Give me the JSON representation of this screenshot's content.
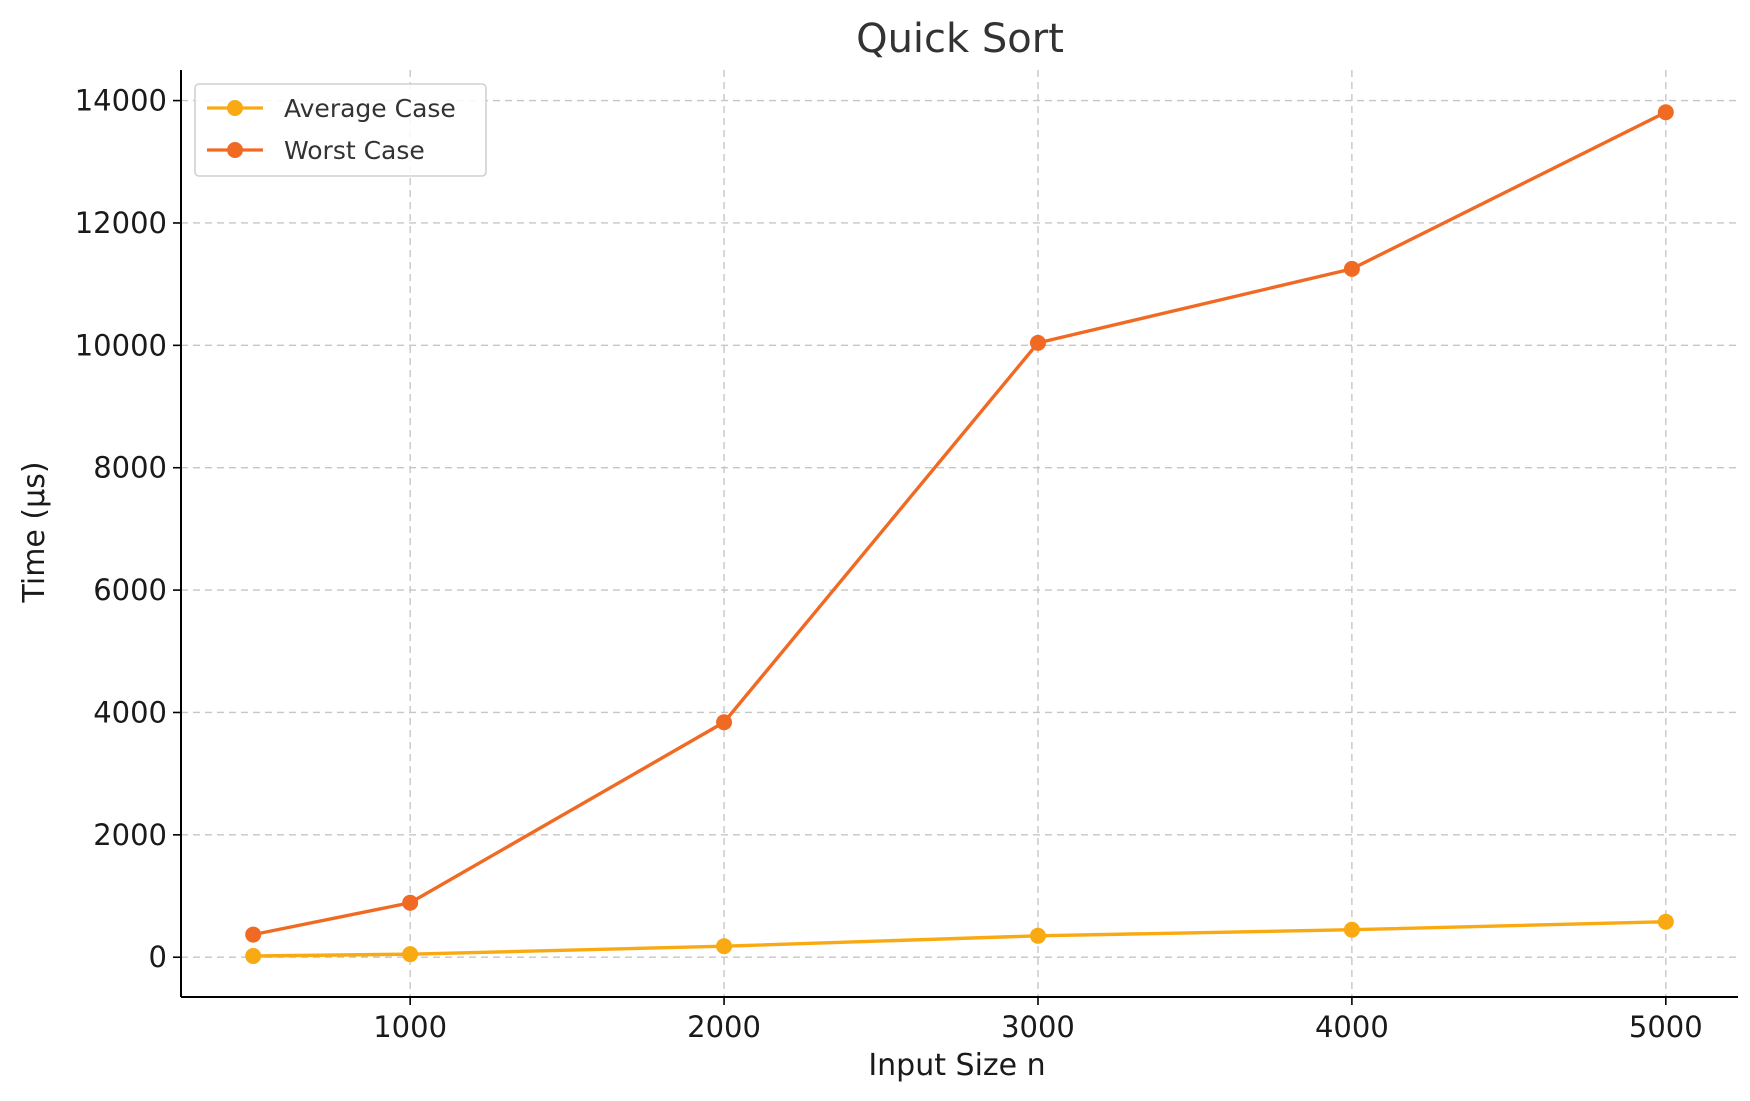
{
  "chart_data": {
    "type": "line",
    "title": "Quick Sort",
    "xlabel": "Input Size n",
    "ylabel": "Time (µs)",
    "x": [
      500,
      1000,
      2000,
      3000,
      4000,
      5000
    ],
    "xlim": [
      270,
      5230
    ],
    "ylim": [
      -650,
      14500
    ],
    "xticks": [
      1000,
      2000,
      3000,
      4000,
      5000
    ],
    "yticks": [
      0,
      2000,
      4000,
      6000,
      8000,
      10000,
      12000,
      14000
    ],
    "grid": true,
    "legend_position": "top-left",
    "series": [
      {
        "name": "Average Case",
        "color": "#f9aa12",
        "values": [
          20,
          50,
          180,
          350,
          450,
          580
        ]
      },
      {
        "name": "Worst Case",
        "color": "#f06a24",
        "values": [
          370,
          890,
          3840,
          10040,
          11250,
          13810
        ]
      }
    ]
  }
}
